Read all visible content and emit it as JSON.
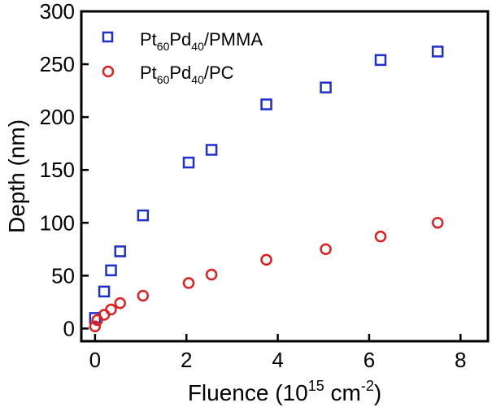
{
  "chart_data": {
    "type": "scatter",
    "title": "",
    "xlabel": "Fluence (10",
    "xlabel_exp": "15",
    "xlabel_unit": " cm",
    "xlabel_unit_exp": "-2",
    "xlabel_close": ")",
    "ylabel": "Depth (nm)",
    "xlim": [
      -0.3,
      8.6
    ],
    "ylim": [
      -12,
      300
    ],
    "xticks": [
      0,
      2,
      4,
      6,
      8
    ],
    "yticks": [
      0,
      50,
      100,
      150,
      200,
      250,
      300
    ],
    "legend_position": "top-left",
    "series": [
      {
        "name": "Pt60Pd40/PMMA",
        "legend_parts": [
          "Pt",
          "60",
          "Pd",
          "40",
          "/PMMA"
        ],
        "marker": "square",
        "color": "#1f2fd0",
        "x": [
          0.0,
          0.2,
          0.35,
          0.55,
          1.05,
          2.05,
          2.55,
          3.75,
          5.05,
          6.25,
          7.5
        ],
        "y": [
          10,
          35,
          55,
          73,
          107,
          157,
          169,
          212,
          228,
          254,
          262
        ]
      },
      {
        "name": "Pt60Pd40/PC",
        "legend_parts": [
          "Pt",
          "60",
          "Pd",
          "40",
          "/PC"
        ],
        "marker": "circle",
        "color": "#e02020",
        "x": [
          0.0,
          0.05,
          0.2,
          0.35,
          0.55,
          1.05,
          2.05,
          2.55,
          3.75,
          5.05,
          6.25,
          7.5
        ],
        "y": [
          2,
          8,
          13,
          18,
          24,
          31,
          43,
          51,
          65,
          75,
          87,
          100
        ]
      }
    ]
  }
}
